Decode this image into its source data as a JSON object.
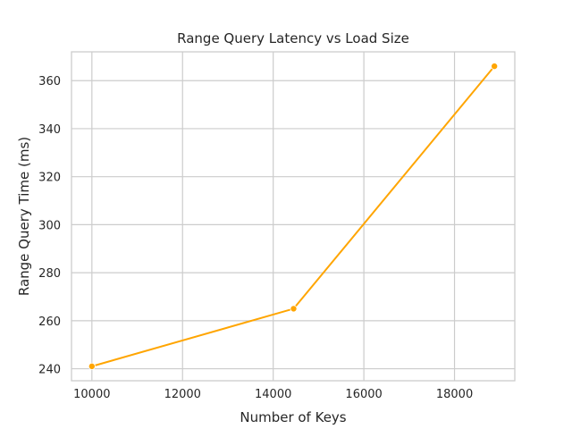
{
  "chart_data": {
    "type": "line",
    "title": "Range Query Latency vs Load Size",
    "xlabel": "Number of Keys",
    "ylabel": "Range Query Time (ms)",
    "x": [
      10000,
      14450,
      18880
    ],
    "series": [
      {
        "values": [
          241,
          265,
          366
        ],
        "color": "#ffa500",
        "marker": "circle"
      }
    ],
    "xlim": [
      9550,
      19330
    ],
    "ylim": [
      235,
      372
    ],
    "xticks": [
      10000,
      12000,
      14000,
      16000,
      18000
    ],
    "yticks": [
      240,
      260,
      280,
      300,
      320,
      340,
      360
    ],
    "xtick_labels": [
      "10000",
      "12000",
      "14000",
      "16000",
      "18000"
    ],
    "ytick_labels": [
      "240",
      "260",
      "280",
      "300",
      "320",
      "340",
      "360"
    ],
    "grid": true,
    "background": "#ffffff",
    "grid_color": "#cccccc"
  }
}
